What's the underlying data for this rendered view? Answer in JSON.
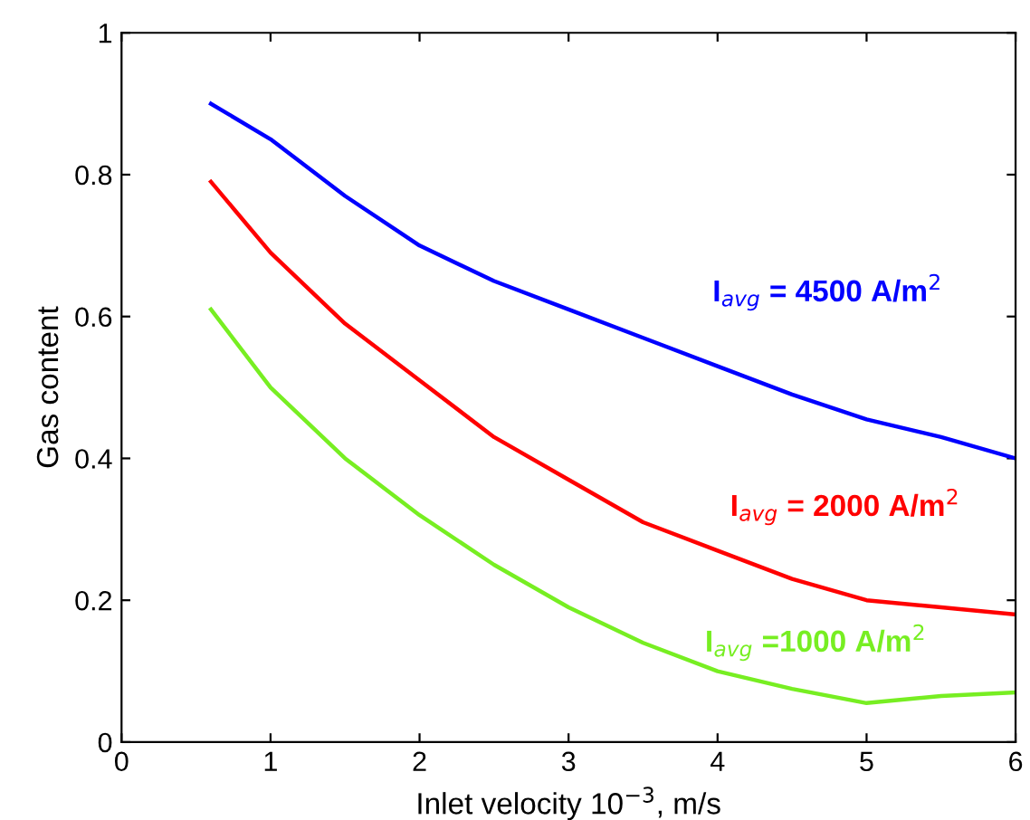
{
  "chart_data": {
    "type": "line",
    "xlabel": "Inlet velocity 10$^{−3}$, m/s",
    "ylabel": "Gas content",
    "x": [
      0.6,
      1,
      1.5,
      2,
      2.5,
      3,
      3.5,
      4,
      4.5,
      5,
      5.5,
      6
    ],
    "series": [
      {
        "name": "I$_{avg}$ = 4500 A/m$^{2}$",
        "color": "#0000ff",
        "values": [
          0.9,
          0.85,
          0.77,
          0.7,
          0.65,
          0.61,
          0.57,
          0.53,
          0.49,
          0.455,
          0.43,
          0.4
        ]
      },
      {
        "name": "I$_{avg}$ = 2000 A/m$^{2}$",
        "color": "#ff0000",
        "values": [
          0.79,
          0.69,
          0.59,
          0.51,
          0.43,
          0.37,
          0.31,
          0.27,
          0.23,
          0.2,
          0.19,
          0.18
        ]
      },
      {
        "name": "I$_{avg}$ =1000 A/m$^{2}$",
        "color": "#77ee22",
        "values": [
          0.61,
          0.5,
          0.4,
          0.32,
          0.25,
          0.19,
          0.14,
          0.1,
          0.075,
          0.055,
          0.065,
          0.07
        ]
      }
    ],
    "xlim": [
      0,
      6
    ],
    "ylim": [
      0,
      1
    ],
    "xticks": [
      0,
      1,
      2,
      3,
      4,
      5,
      6
    ],
    "yticks": [
      0,
      0.2,
      0.4,
      0.6,
      0.8,
      1
    ],
    "grid": false,
    "legend": false,
    "marker": "none",
    "line_style": "solid"
  }
}
